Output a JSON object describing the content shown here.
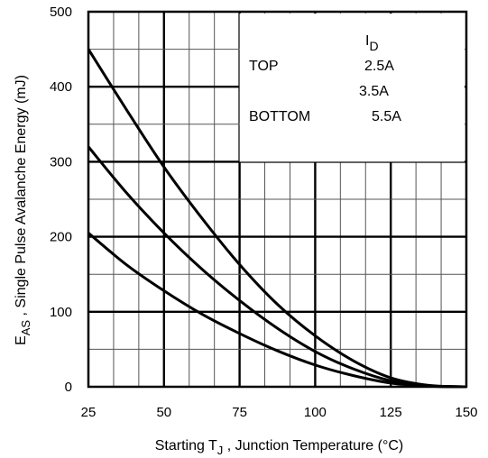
{
  "chart_data": {
    "type": "line",
    "xlabel": {
      "main": "Starting T",
      "sub": "J",
      "rest": " , Junction Temperature (°C)"
    },
    "ylabel": {
      "main": "E",
      "sub": "AS",
      "rest": " , Single Pulse Avalanche Energy (mJ)"
    },
    "xlim": [
      25,
      150
    ],
    "ylim": [
      0,
      500
    ],
    "x_ticks": [
      "25",
      "50",
      "75",
      "100",
      "125",
      "150"
    ],
    "y_ticks": [
      "0",
      "100",
      "200",
      "300",
      "400",
      "500"
    ],
    "grid": true,
    "legend": {
      "placement": "top-right",
      "header_main": "I",
      "header_sub": "D",
      "rows": [
        {
          "tag": "TOP",
          "value": "2.5A"
        },
        {
          "tag": "",
          "value": "3.5A"
        },
        {
          "tag": "BOTTOM",
          "value": "5.5A"
        }
      ]
    },
    "series": [
      {
        "x": [
          25,
          37.5,
          50,
          62.5,
          75,
          87.5,
          100,
          112.5,
          125,
          137.5,
          150
        ],
        "y": [
          450,
          370,
          293,
          225,
          163,
          110,
          68,
          35,
          12,
          2,
          0
        ]
      },
      {
        "x": [
          25,
          37.5,
          50,
          62.5,
          75,
          87.5,
          100,
          112.5,
          125,
          137.5,
          150
        ],
        "y": [
          320,
          259,
          205,
          157,
          115,
          78,
          47,
          24,
          8,
          1,
          0
        ]
      },
      {
        "x": [
          25,
          37.5,
          50,
          62.5,
          75,
          87.5,
          100,
          112.5,
          125,
          137.5,
          150
        ],
        "y": [
          205,
          163,
          128,
          97,
          71,
          48,
          29,
          15,
          5,
          1,
          0
        ]
      }
    ]
  }
}
